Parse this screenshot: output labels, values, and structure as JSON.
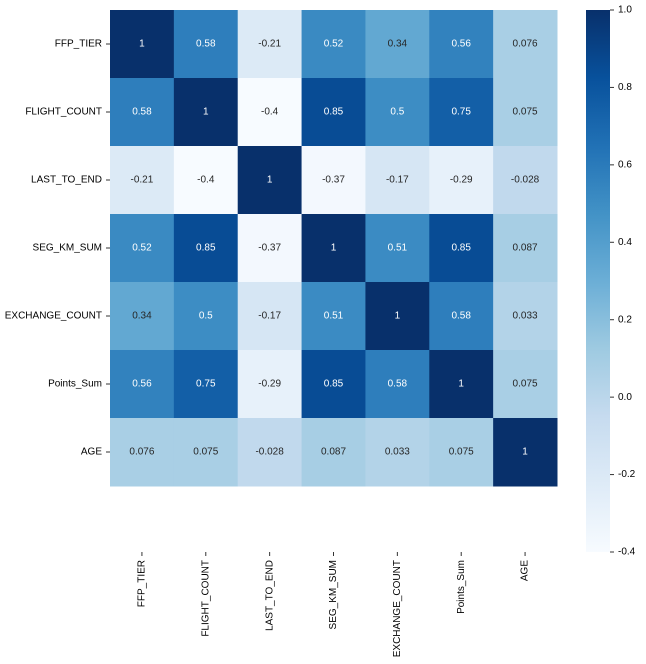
{
  "chart_data": {
    "type": "heatmap",
    "x_categories": [
      "FFP_TIER",
      "FLIGHT_COUNT",
      "LAST_TO_END",
      "SEG_KM_SUM",
      "EXCHANGE_COUNT",
      "Points_Sum",
      "AGE"
    ],
    "y_categories": [
      "FFP_TIER",
      "FLIGHT_COUNT",
      "LAST_TO_END",
      "SEG_KM_SUM",
      "EXCHANGE_COUNT",
      "Points_Sum",
      "AGE"
    ],
    "values": [
      [
        1,
        0.58,
        -0.21,
        0.52,
        0.34,
        0.56,
        0.076
      ],
      [
        0.58,
        1,
        -0.4,
        0.85,
        0.5,
        0.75,
        0.075
      ],
      [
        -0.21,
        -0.4,
        1,
        -0.37,
        -0.17,
        -0.29,
        -0.028
      ],
      [
        0.52,
        0.85,
        -0.37,
        1,
        0.51,
        0.85,
        0.087
      ],
      [
        0.34,
        0.5,
        -0.17,
        0.51,
        1,
        0.58,
        0.033
      ],
      [
        0.56,
        0.75,
        -0.29,
        0.85,
        0.58,
        1,
        0.075
      ],
      [
        0.076,
        0.075,
        -0.028,
        0.087,
        0.033,
        0.075,
        1
      ]
    ],
    "zlim": [
      -0.4,
      1
    ],
    "zticks": [
      -0.4,
      -0.2,
      {
        "value": 0,
        "label": "0.0"
      },
      0.2,
      0.4,
      0.6,
      0.8,
      {
        "value": 1,
        "label": "1.0"
      }
    ],
    "colormap": [
      "#f7fbff",
      "#deebf7",
      "#c6dbef",
      "#9ecae1",
      "#6baed6",
      "#4292c6",
      "#2171b5",
      "#08519c",
      "#08306b"
    ]
  }
}
